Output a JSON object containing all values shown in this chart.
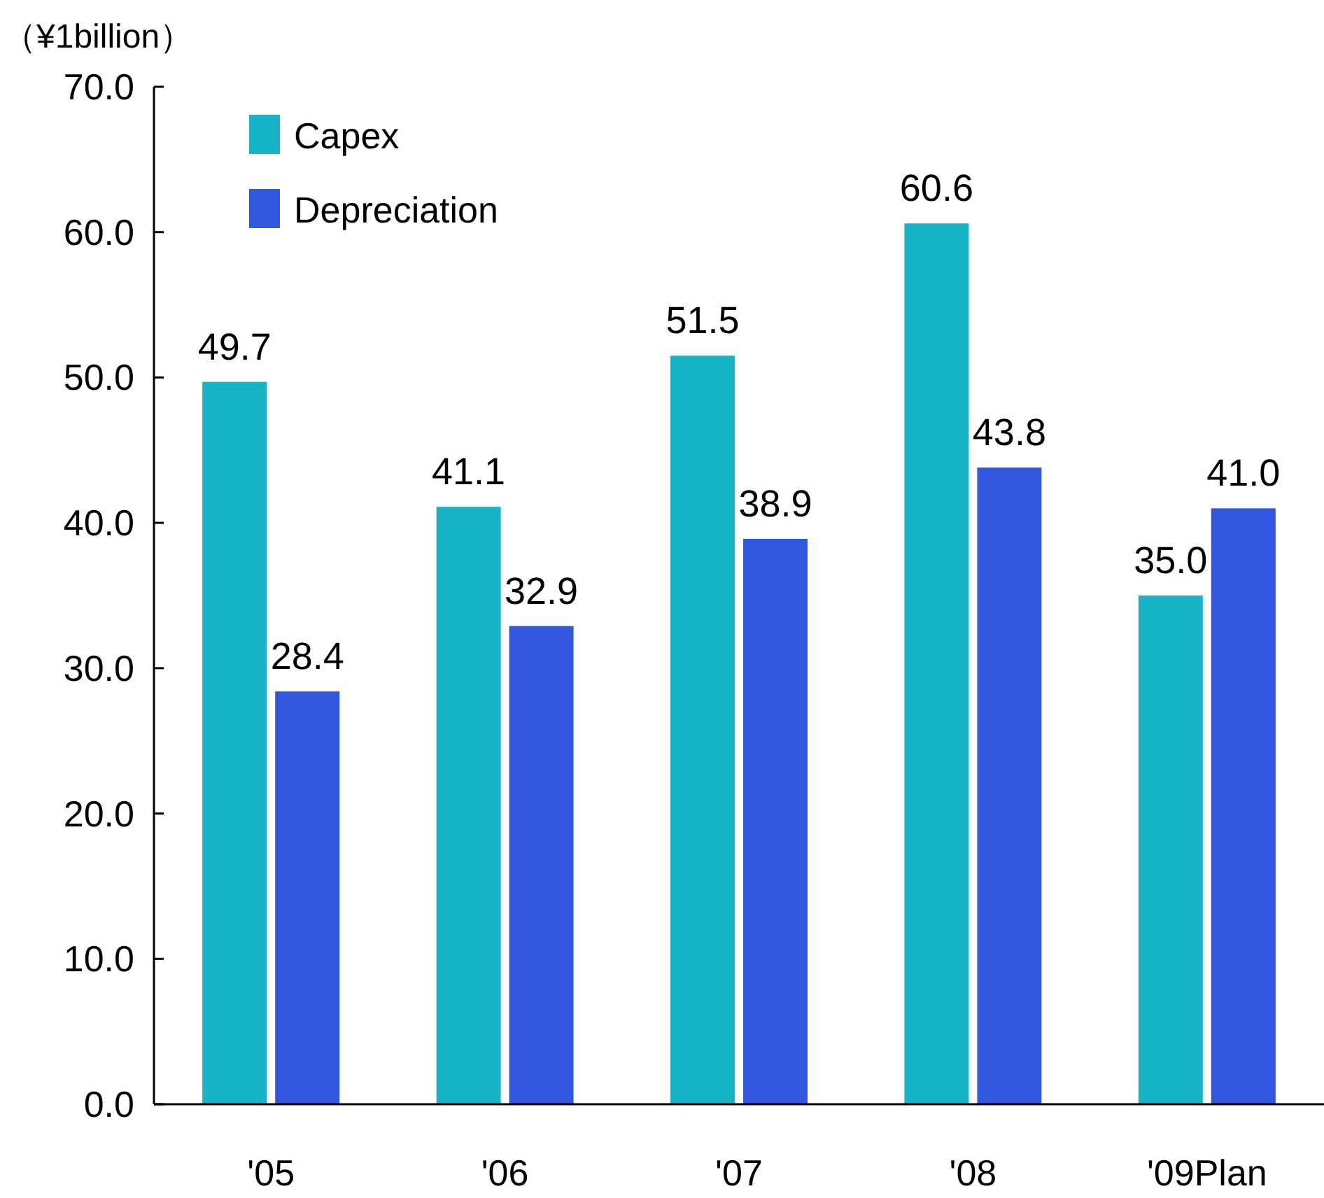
{
  "chart_data": {
    "type": "bar",
    "ylabel": "（¥1billion）",
    "categories": [
      "'05",
      "'06",
      "'07",
      "'08",
      "'09Plan"
    ],
    "series": [
      {
        "name": "Capex",
        "color": "#17b4c8",
        "values": [
          49.7,
          41.1,
          51.5,
          60.6,
          35.0
        ],
        "value_labels": [
          "49.7",
          "41.1",
          "51.5",
          "60.6",
          "35.0"
        ]
      },
      {
        "name": "Depreciation",
        "color": "#3157e0",
        "values": [
          28.4,
          32.9,
          38.9,
          43.8,
          41.0
        ],
        "value_labels": [
          "28.4",
          "32.9",
          "38.9",
          "43.8",
          "41.0"
        ]
      }
    ],
    "ylim": [
      0,
      70
    ],
    "yticks": [
      {
        "value": 0,
        "label": "0.0"
      },
      {
        "value": 10,
        "label": "10.0"
      },
      {
        "value": 20,
        "label": "20.0"
      },
      {
        "value": 30,
        "label": "30.0"
      },
      {
        "value": 40,
        "label": "40.0"
      },
      {
        "value": 50,
        "label": "50.0"
      },
      {
        "value": 60,
        "label": "60.0"
      },
      {
        "value": 70,
        "label": "70.0"
      }
    ],
    "grid": false,
    "legend": "top left"
  }
}
